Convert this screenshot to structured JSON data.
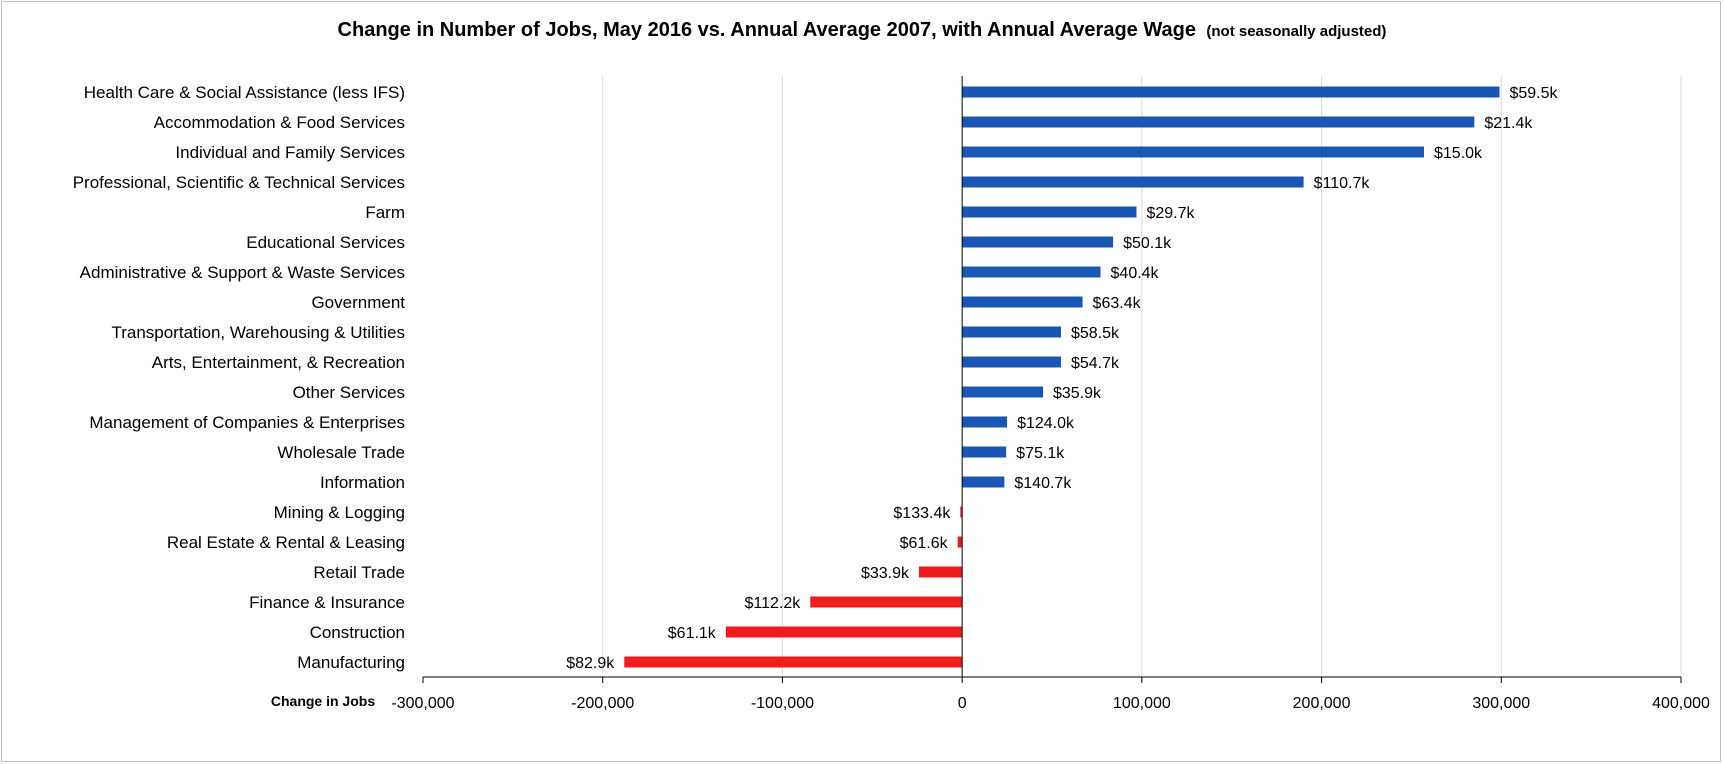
{
  "chart_data": {
    "type": "bar",
    "orientation": "horizontal",
    "title": "Change in Number of Jobs, May 2016 vs. Annual Average 2007, with Annual Average Wage",
    "subtitle": "(not seasonally adjusted)",
    "xlabel": "Change in Jobs",
    "ylabel": "",
    "xlim": [
      -300000,
      400000
    ],
    "xticks": [
      -300000,
      -200000,
      -100000,
      0,
      100000,
      200000,
      300000,
      400000
    ],
    "xtick_labels": [
      "-300,000",
      "-200,000",
      "-100,000",
      "0",
      "100,000",
      "200,000",
      "300,000",
      "400,000"
    ],
    "grid": "vertical",
    "legend": "none",
    "colors": {
      "positive": "#1a56b4",
      "negative": "#ee1c1c",
      "grid": "#d9d9d9",
      "axis": "#000000"
    },
    "categories": [
      "Health Care & Social Assistance (less IFS)",
      "Accommodation & Food Services",
      "Individual and Family Services",
      "Professional, Scientific & Technical Services",
      "Farm",
      "Educational Services",
      "Administrative & Support & Waste Services",
      "Government",
      "Transportation, Warehousing & Utilities",
      "Arts, Entertainment, & Recreation",
      "Other Services",
      "Management of Companies & Enterprises",
      "Wholesale Trade",
      "Information",
      "Mining & Logging",
      "Real Estate & Rental & Leasing",
      "Retail Trade",
      "Finance & Insurance",
      "Construction",
      "Manufacturing"
    ],
    "values": [
      299000,
      285000,
      257000,
      190000,
      97000,
      84000,
      77000,
      67000,
      55000,
      55000,
      45000,
      25000,
      24500,
      23500,
      -1000,
      -2500,
      -24000,
      -84500,
      -131500,
      -188000
    ],
    "data_labels": [
      "$59.5k",
      "$21.4k",
      "$15.0k",
      "$110.7k",
      "$29.7k",
      "$50.1k",
      "$40.4k",
      "$63.4k",
      "$58.5k",
      "$54.7k",
      "$35.9k",
      "$124.0k",
      "$75.1k",
      "$140.7k",
      "$133.4k",
      "$61.6k",
      "$33.9k",
      "$112.2k",
      "$61.1k",
      "$82.9k"
    ]
  }
}
